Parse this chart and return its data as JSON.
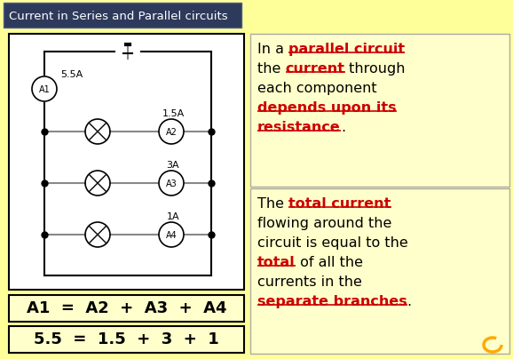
{
  "bg_color": "#FFFF99",
  "title_bg": "#2E3A5C",
  "title_text": "Current in Series and Parallel circuits",
  "title_color": "#FFFFFF",
  "circuit_bg": "#FFFFFF",
  "circuit_border": "#000000",
  "equation1": "A1  =  A2  +  A3  +  A4",
  "equation2": "5.5  =  1.5  +  3  +  1",
  "eq_bg": "#FFFFCC",
  "eq_border": "#000000",
  "panel_bg": "#FFFFCC",
  "panel_border": "#AAAAAA",
  "font_family": "Comic Sans MS",
  "ammeter_labels": [
    "A1",
    "A2",
    "A3",
    "A4"
  ],
  "current_labels": [
    "5.5A",
    "1.5A",
    "3A",
    "1A"
  ],
  "wire_color": "#888888",
  "dot_color": "#000000",
  "figw": 5.78,
  "figh": 4.04,
  "dpi": 100
}
